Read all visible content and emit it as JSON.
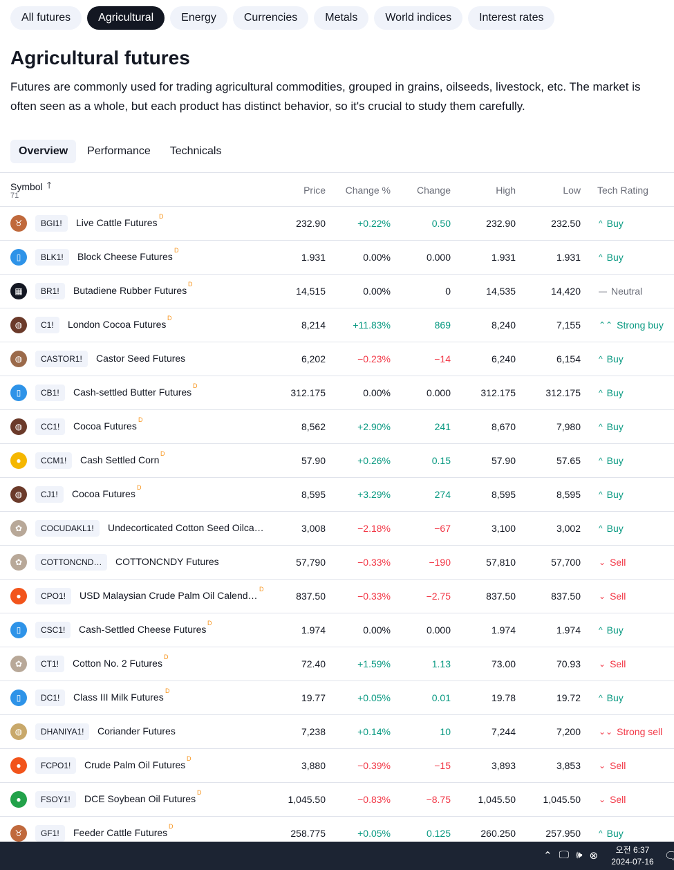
{
  "category_pills": [
    {
      "label": "All futures",
      "active": false
    },
    {
      "label": "Agricultural",
      "active": true
    },
    {
      "label": "Energy",
      "active": false
    },
    {
      "label": "Currencies",
      "active": false
    },
    {
      "label": "Metals",
      "active": false
    },
    {
      "label": "World indices",
      "active": false
    },
    {
      "label": "Interest rates",
      "active": false
    }
  ],
  "page": {
    "title": "Agricultural futures",
    "description": "Futures are commonly used for trading agricultural commodities, grouped in grains, oilseeds, livestock, etc. The market is often seen as a whole, but each product has distinct behavior, so it's crucial to study them carefully."
  },
  "tabs": [
    {
      "label": "Overview",
      "active": true
    },
    {
      "label": "Performance",
      "active": false
    },
    {
      "label": "Technicals",
      "active": false
    }
  ],
  "table": {
    "columns": {
      "symbol": "Symbol",
      "count": "71",
      "price": "Price",
      "change_pct": "Change %",
      "change": "Change",
      "high": "High",
      "low": "Low",
      "tech_rating": "Tech Rating"
    },
    "rows": [
      {
        "icon": "cattle-icon",
        "icon_color": "#c0693c",
        "ticker": "BGI1!",
        "name": "Live Cattle Futures",
        "delayed": "D",
        "price": "232.90",
        "change_pct": "+0.22%",
        "change": "0.50",
        "high": "232.90",
        "low": "232.50",
        "rating": "Buy",
        "dir": "pos",
        "rating_class": "pos",
        "rating_icon": "^"
      },
      {
        "icon": "milk-icon",
        "icon_color": "#2e93e8",
        "ticker": "BLK1!",
        "name": "Block Cheese Futures",
        "delayed": "D",
        "price": "1.931",
        "change_pct": "0.00%",
        "change": "0.000",
        "high": "1.931",
        "low": "1.931",
        "rating": "Buy",
        "dir": "neu",
        "rating_class": "pos",
        "rating_icon": "^"
      },
      {
        "icon": "rubber-icon",
        "icon_color": "#131722",
        "ticker": "BR1!",
        "name": "Butadiene Rubber Futures",
        "delayed": "D",
        "price": "14,515",
        "change_pct": "0.00%",
        "change": "0",
        "high": "14,535",
        "low": "14,420",
        "rating": "Neutral",
        "dir": "neu",
        "rating_class": "neu",
        "rating_icon": "—"
      },
      {
        "icon": "cocoa-icon",
        "icon_color": "#6b3a2a",
        "ticker": "C1!",
        "name": "London Cocoa Futures",
        "delayed": "D",
        "price": "8,214",
        "change_pct": "+11.83%",
        "change": "869",
        "high": "8,240",
        "low": "7,155",
        "rating": "Strong buy",
        "dir": "pos",
        "rating_class": "pos",
        "rating_icon": "⌃⌃"
      },
      {
        "icon": "seed-icon",
        "icon_color": "#9b6a4a",
        "ticker": "CASTOR1!",
        "name": "Castor Seed Futures",
        "delayed": "",
        "price": "6,202",
        "change_pct": "−0.23%",
        "change": "−14",
        "high": "6,240",
        "low": "6,154",
        "rating": "Buy",
        "dir": "neg",
        "rating_class": "pos",
        "rating_icon": "^"
      },
      {
        "icon": "milk-icon",
        "icon_color": "#2e93e8",
        "ticker": "CB1!",
        "name": "Cash-settled Butter Futures",
        "delayed": "D",
        "price": "312.175",
        "change_pct": "0.00%",
        "change": "0.000",
        "high": "312.175",
        "low": "312.175",
        "rating": "Buy",
        "dir": "neu",
        "rating_class": "pos",
        "rating_icon": "^"
      },
      {
        "icon": "cocoa-icon",
        "icon_color": "#6b3a2a",
        "ticker": "CC1!",
        "name": "Cocoa Futures",
        "delayed": "D",
        "price": "8,562",
        "change_pct": "+2.90%",
        "change": "241",
        "high": "8,670",
        "low": "7,980",
        "rating": "Buy",
        "dir": "pos",
        "rating_class": "pos",
        "rating_icon": "^"
      },
      {
        "icon": "corn-icon",
        "icon_color": "#f5b700",
        "ticker": "CCM1!",
        "name": "Cash Settled Corn",
        "delayed": "D",
        "price": "57.90",
        "change_pct": "+0.26%",
        "change": "0.15",
        "high": "57.90",
        "low": "57.65",
        "rating": "Buy",
        "dir": "pos",
        "rating_class": "pos",
        "rating_icon": "^"
      },
      {
        "icon": "cocoa-icon",
        "icon_color": "#6b3a2a",
        "ticker": "CJ1!",
        "name": "Cocoa Futures",
        "delayed": "D",
        "price": "8,595",
        "change_pct": "+3.29%",
        "change": "274",
        "high": "8,595",
        "low": "8,595",
        "rating": "Buy",
        "dir": "pos",
        "rating_class": "pos",
        "rating_icon": "^"
      },
      {
        "icon": "cotton-icon",
        "icon_color": "#b8a898",
        "ticker": "COCUDAKL1!",
        "name": "Undecorticated Cotton Seed Oilca…",
        "delayed": "",
        "price": "3,008",
        "change_pct": "−2.18%",
        "change": "−67",
        "high": "3,100",
        "low": "3,002",
        "rating": "Buy",
        "dir": "neg",
        "rating_class": "pos",
        "rating_icon": "^"
      },
      {
        "icon": "cotton-icon",
        "icon_color": "#b8a898",
        "ticker": "COTTONCND…",
        "name": "COTTONCNDY Futures",
        "delayed": "",
        "price": "57,790",
        "change_pct": "−0.33%",
        "change": "−190",
        "high": "57,810",
        "low": "57,700",
        "rating": "Sell",
        "dir": "neg",
        "rating_class": "neg",
        "rating_icon": "⌄"
      },
      {
        "icon": "palm-oil-icon",
        "icon_color": "#f2541b",
        "ticker": "CPO1!",
        "name": "USD Malaysian Crude Palm Oil Calend…",
        "delayed": "D",
        "price": "837.50",
        "change_pct": "−0.33%",
        "change": "−2.75",
        "high": "837.50",
        "low": "837.50",
        "rating": "Sell",
        "dir": "neg",
        "rating_class": "neg",
        "rating_icon": "⌄"
      },
      {
        "icon": "milk-icon",
        "icon_color": "#2e93e8",
        "ticker": "CSC1!",
        "name": "Cash-Settled Cheese Futures",
        "delayed": "D",
        "price": "1.974",
        "change_pct": "0.00%",
        "change": "0.000",
        "high": "1.974",
        "low": "1.974",
        "rating": "Buy",
        "dir": "neu",
        "rating_class": "pos",
        "rating_icon": "^"
      },
      {
        "icon": "cotton-icon",
        "icon_color": "#b8a898",
        "ticker": "CT1!",
        "name": "Cotton No. 2 Futures",
        "delayed": "D",
        "price": "72.40",
        "change_pct": "+1.59%",
        "change": "1.13",
        "high": "73.00",
        "low": "70.93",
        "rating": "Sell",
        "dir": "pos",
        "rating_class": "neg",
        "rating_icon": "⌄"
      },
      {
        "icon": "milk-icon",
        "icon_color": "#2e93e8",
        "ticker": "DC1!",
        "name": "Class III Milk Futures",
        "delayed": "D",
        "price": "19.77",
        "change_pct": "+0.05%",
        "change": "0.01",
        "high": "19.78",
        "low": "19.72",
        "rating": "Buy",
        "dir": "pos",
        "rating_class": "pos",
        "rating_icon": "^"
      },
      {
        "icon": "seed-icon",
        "icon_color": "#c8a86a",
        "ticker": "DHANIYA1!",
        "name": "Coriander Futures",
        "delayed": "",
        "price": "7,238",
        "change_pct": "+0.14%",
        "change": "10",
        "high": "7,244",
        "low": "7,200",
        "rating": "Strong sell",
        "dir": "pos",
        "rating_class": "neg",
        "rating_icon": "⌄⌄"
      },
      {
        "icon": "palm-oil-icon",
        "icon_color": "#f2541b",
        "ticker": "FCPO1!",
        "name": "Crude Palm Oil Futures",
        "delayed": "D",
        "price": "3,880",
        "change_pct": "−0.39%",
        "change": "−15",
        "high": "3,893",
        "low": "3,853",
        "rating": "Sell",
        "dir": "neg",
        "rating_class": "neg",
        "rating_icon": "⌄"
      },
      {
        "icon": "soybean-oil-icon",
        "icon_color": "#22a24a",
        "ticker": "FSOY1!",
        "name": "DCE Soybean Oil Futures",
        "delayed": "D",
        "price": "1,045.50",
        "change_pct": "−0.83%",
        "change": "−8.75",
        "high": "1,045.50",
        "low": "1,045.50",
        "rating": "Sell",
        "dir": "neg",
        "rating_class": "neg",
        "rating_icon": "⌄"
      },
      {
        "icon": "cattle-icon",
        "icon_color": "#c0693c",
        "ticker": "GF1!",
        "name": "Feeder Cattle Futures",
        "delayed": "D",
        "price": "258.775",
        "change_pct": "+0.05%",
        "change": "0.125",
        "high": "260.250",
        "low": "257.950",
        "rating": "Buy",
        "dir": "pos",
        "rating_class": "pos",
        "rating_icon": "^"
      }
    ]
  },
  "taskbar": {
    "time": "오전 6:37",
    "date": "2024-07-16"
  }
}
